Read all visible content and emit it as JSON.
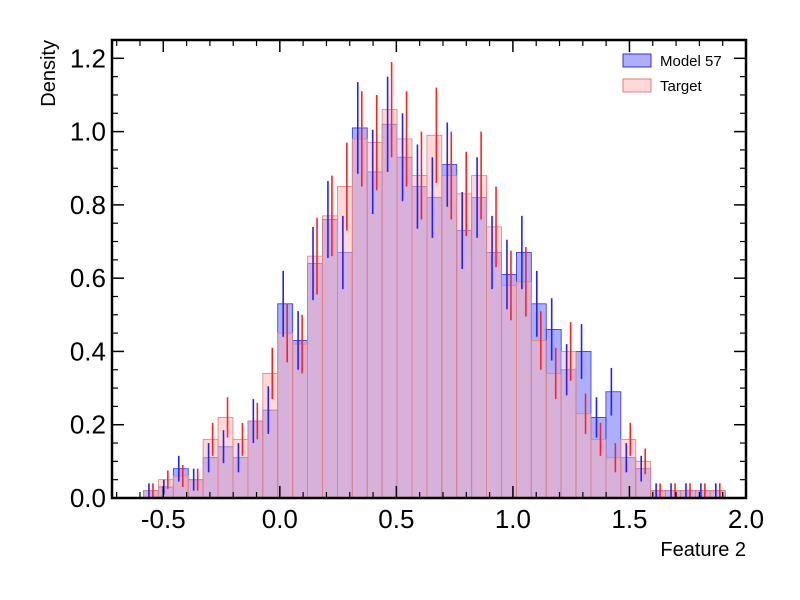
{
  "chart_data": {
    "type": "bar",
    "xlabel": "Feature 2",
    "ylabel": "Density",
    "xlim": [
      -0.72,
      2.0
    ],
    "ylim": [
      0,
      1.25
    ],
    "x_ticks": [
      -0.5,
      0.0,
      0.5,
      1.0,
      1.5,
      2.0
    ],
    "x_tick_labels": [
      "-0.5",
      "0.0",
      "0.5",
      "1.0",
      "1.5",
      "2.0"
    ],
    "y_ticks": [
      0.0,
      0.2,
      0.4,
      0.6,
      0.8,
      1.0,
      1.2
    ],
    "y_tick_labels": [
      "0.0",
      "0.2",
      "0.4",
      "0.6",
      "0.8",
      "1.0",
      "1.2"
    ],
    "legend_position": "top-right",
    "bin_edges": [
      -0.585,
      -0.521,
      -0.457,
      -0.393,
      -0.329,
      -0.265,
      -0.201,
      -0.137,
      -0.073,
      -0.009,
      0.055,
      0.119,
      0.183,
      0.247,
      0.311,
      0.375,
      0.439,
      0.503,
      0.567,
      0.631,
      0.695,
      0.759,
      0.823,
      0.887,
      0.951,
      1.015,
      1.079,
      1.143,
      1.207,
      1.271,
      1.335,
      1.399,
      1.463,
      1.527,
      1.591,
      1.655,
      1.719,
      1.783,
      1.847,
      1.911
    ],
    "series": [
      {
        "name": "Model 57",
        "fill": "#6b6bff",
        "stroke": "#3333cc",
        "err_color": "#2222ff",
        "values": [
          0.02,
          0.03,
          0.08,
          0.05,
          0.11,
          0.14,
          0.11,
          0.21,
          0.24,
          0.53,
          0.43,
          0.64,
          0.76,
          0.67,
          1.01,
          0.89,
          1.02,
          0.93,
          0.85,
          0.82,
          0.91,
          0.73,
          0.82,
          0.67,
          0.61,
          0.67,
          0.53,
          0.46,
          0.35,
          0.4,
          0.22,
          0.29,
          0.11,
          0.08,
          0.02,
          0.02,
          0.02,
          0.02,
          0.02
        ],
        "errors": [
          0.02,
          0.02,
          0.035,
          0.03,
          0.04,
          0.045,
          0.04,
          0.06,
          0.065,
          0.09,
          0.08,
          0.1,
          0.105,
          0.1,
          0.125,
          0.115,
          0.13,
          0.12,
          0.115,
          0.11,
          0.115,
          0.105,
          0.11,
          0.1,
          0.095,
          0.1,
          0.09,
          0.085,
          0.07,
          0.075,
          0.055,
          0.065,
          0.04,
          0.035,
          0.02,
          0.02,
          0.02,
          0.02,
          0.02
        ]
      },
      {
        "name": "Target",
        "fill": "#ffb3b3",
        "stroke": "#e08080",
        "err_color": "#ff2222",
        "values": [
          0.02,
          0.05,
          0.06,
          0.05,
          0.16,
          0.22,
          0.16,
          0.21,
          0.34,
          0.45,
          0.42,
          0.66,
          0.77,
          0.85,
          0.98,
          0.97,
          1.06,
          0.98,
          0.88,
          0.99,
          0.88,
          0.83,
          0.88,
          0.74,
          0.58,
          0.59,
          0.43,
          0.34,
          0.4,
          0.23,
          0.16,
          0.11,
          0.16,
          0.1,
          0.02,
          0.02,
          0.02,
          0.02,
          0.02
        ],
        "errors": [
          0.02,
          0.025,
          0.03,
          0.03,
          0.045,
          0.055,
          0.045,
          0.05,
          0.07,
          0.08,
          0.08,
          0.105,
          0.11,
          0.12,
          0.13,
          0.13,
          0.13,
          0.13,
          0.12,
          0.13,
          0.12,
          0.115,
          0.12,
          0.11,
          0.095,
          0.095,
          0.08,
          0.07,
          0.08,
          0.055,
          0.045,
          0.04,
          0.045,
          0.035,
          0.02,
          0.02,
          0.02,
          0.02,
          0.02
        ]
      }
    ]
  }
}
